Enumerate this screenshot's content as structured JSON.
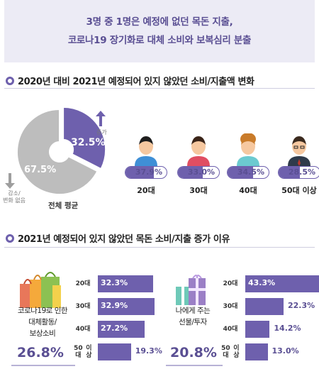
{
  "banner": {
    "line1": "3명 중 1명은 예정에 없던 목돈 지출,",
    "line2": "코로나19 장기화로 대체 소비와 보복심리 분출"
  },
  "section1": {
    "title": "2020년 대비 2021년 예정되어 있지 않았던 소비/지출액 변화"
  },
  "section2": {
    "title": "2021년 예정되어 있지 않았던 목돈 소비/지출 증가 이유"
  },
  "colors": {
    "accent": "#6e60ad",
    "gray": "#bdbdbd",
    "banner_bg": "#ecebf5"
  },
  "chart_data": [
    {
      "type": "pie",
      "caption": "전체 평균",
      "slices": [
        {
          "name": "증가",
          "value": 32.5,
          "label": "32.5%",
          "color": "#6e60ad",
          "icon": "arrow-up-icon"
        },
        {
          "name": "감소/변화 없음",
          "name_line1": "감소/",
          "name_line2": "변화 없음",
          "value": 67.5,
          "label": "67.5%",
          "color": "#bdbdbd",
          "icon": "arrow-down-icon"
        }
      ]
    },
    {
      "type": "bar",
      "orientation": "pill",
      "categories": [
        "20대",
        "30대",
        "40대",
        "50대 이상"
      ],
      "values": [
        37.9,
        33.0,
        34.5,
        28.5
      ],
      "labels": [
        "37.9%",
        "33.0%",
        "34.5%",
        "28.5%"
      ],
      "icons": [
        "young-man-icon",
        "young-woman-icon",
        "middle-woman-icon",
        "older-man-icon"
      ]
    },
    {
      "type": "bar",
      "orientation": "horizontal",
      "title_line1": "코로나19로 인한",
      "title_line2": "대체활동/",
      "title_line3": "보상소비",
      "total": "26.8%",
      "icon": "shopping-bags-icon",
      "categories": [
        "20대",
        "30대",
        "40대",
        "50대 이상"
      ],
      "category_lines": [
        [
          "20대"
        ],
        [
          "30대"
        ],
        [
          "40대"
        ],
        [
          "50대",
          "이상"
        ]
      ],
      "values": [
        32.3,
        32.9,
        27.2,
        19.3
      ],
      "labels": [
        "32.3%",
        "32.9%",
        "27.2%",
        "19.3%"
      ]
    },
    {
      "type": "bar",
      "orientation": "horizontal",
      "title_line1": "나에게 주는",
      "title_line2": "선물/투자",
      "total": "20.8%",
      "icon": "gift-boxes-icon",
      "categories": [
        "20대",
        "30대",
        "40대",
        "50대 이상"
      ],
      "category_lines": [
        [
          "20대"
        ],
        [
          "30대"
        ],
        [
          "40대"
        ],
        [
          "50대",
          "이상"
        ]
      ],
      "values": [
        43.3,
        22.3,
        14.2,
        13.0
      ],
      "labels": [
        "43.3%",
        "22.3%",
        "14.2%",
        "13.0%"
      ]
    }
  ]
}
